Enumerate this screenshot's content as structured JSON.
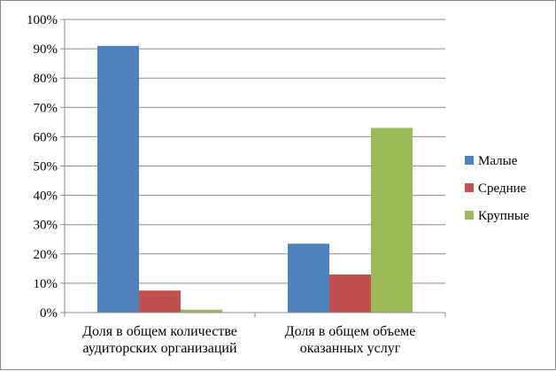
{
  "chart_data": {
    "type": "bar",
    "title": "",
    "xlabel": "",
    "ylabel": "",
    "categories": [
      [
        "Доля в общем количестве",
        "аудиторских организаций"
      ],
      [
        "Доля в общем объеме",
        "оказанных  услуг"
      ]
    ],
    "series": [
      {
        "name": "Малые",
        "color": "#4F81BD",
        "values": [
          91,
          23.5
        ]
      },
      {
        "name": "Средние",
        "color": "#C0504D",
        "values": [
          7.5,
          13
        ]
      },
      {
        "name": "Крупные",
        "color": "#9BBB59",
        "values": [
          1,
          63
        ]
      }
    ],
    "ylim": [
      0,
      100
    ],
    "yticks": [
      0,
      10,
      20,
      30,
      40,
      50,
      60,
      70,
      80,
      90,
      100
    ],
    "ytick_labels": [
      "0%",
      "10%",
      "20%",
      "30%",
      "40%",
      "50%",
      "60%",
      "70%",
      "80%",
      "90%",
      "100%"
    ],
    "grid": true,
    "legend_position": "right"
  }
}
